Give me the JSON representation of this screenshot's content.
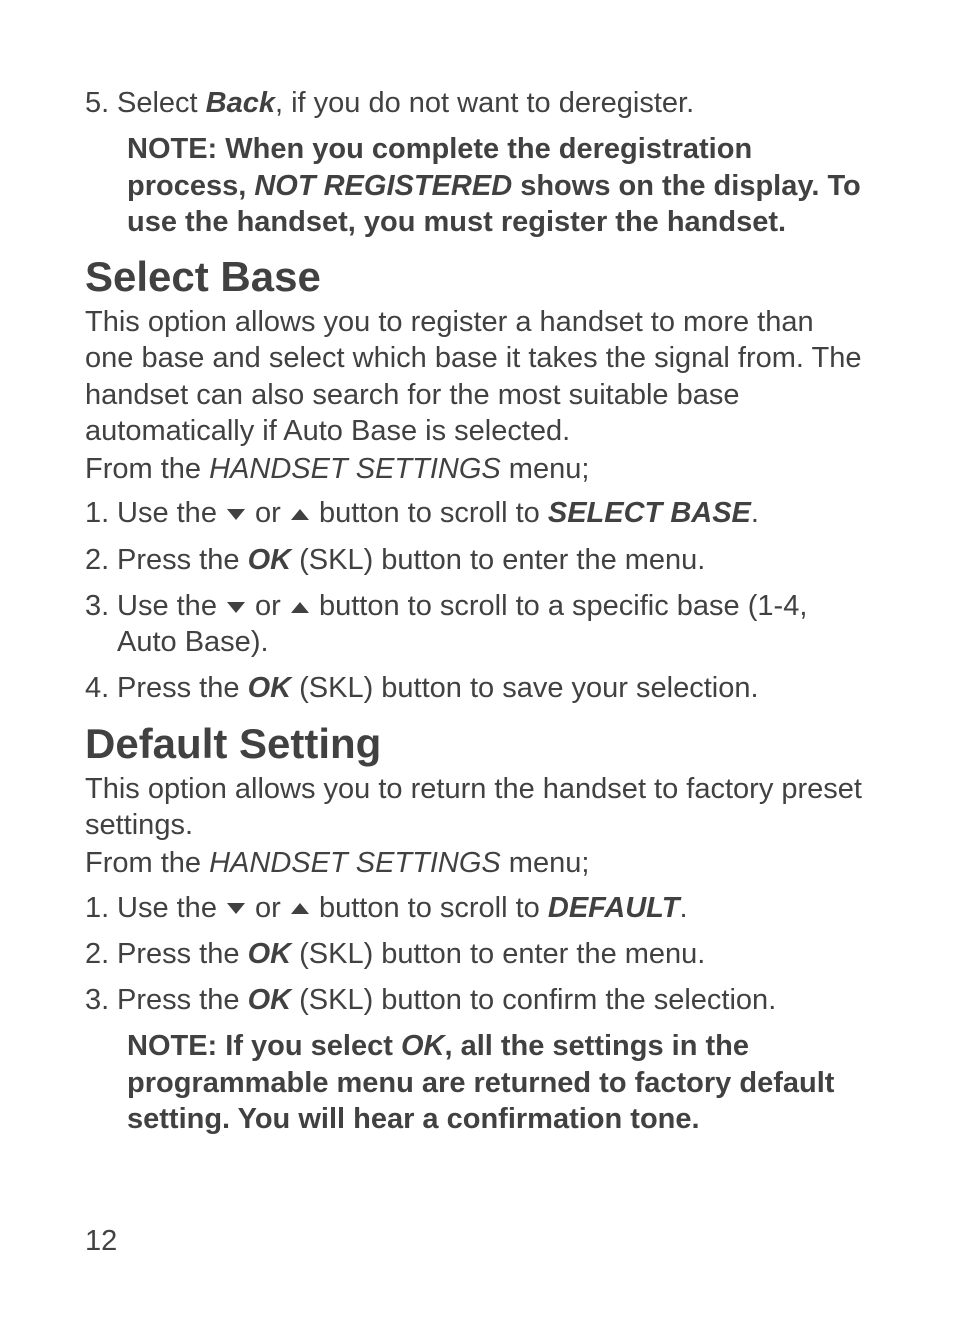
{
  "colors": {
    "text": "#414142",
    "bg": "#ffffff"
  },
  "typography": {
    "body_pt": 29,
    "heading_pt": 42,
    "note_pt": 29,
    "line_height": 1.25
  },
  "top": {
    "step5_num": "5.",
    "step5_a": "Select ",
    "step5_back": "Back",
    "step5_b": ", if you do not want to deregister.",
    "note_a": "NOTE: When you complete the deregistration process, ",
    "note_b": "NOT REGISTERED",
    "note_c": " shows on the display. To use the handset, you must register the handset."
  },
  "select_base": {
    "heading": "Select Base",
    "intro": "This option allows you to register a handset to more than one base and select which base it takes the signal from. The handset can also search for the most suitable base automatically if Auto Base is selected.",
    "from_a": "From the ",
    "from_b": "HANDSET SETTINGS",
    "from_c": " menu;",
    "s1_num": "1.",
    "s1_a": "Use the ",
    "s1_or": " or ",
    "s1_b": "  button to scroll to ",
    "s1_target": "SELECT BASE",
    "s1_c": ".",
    "s2_num": "2.",
    "s2_a": "Press the ",
    "s2_ok": "OK",
    "s2_b": " (SKL) button to enter the menu.",
    "s3_num": "3.",
    "s3_a": "Use the ",
    "s3_or": " or ",
    "s3_b": "  button to scroll to a specific base (1-4, Auto Base).",
    "s4_num": "4.",
    "s4_a": "Press the ",
    "s4_ok": "OK",
    "s4_b": " (SKL) button to save your selection."
  },
  "default_setting": {
    "heading": "Default Setting",
    "intro": "This option allows you to return the handset to factory preset settings.",
    "from_a": "From the ",
    "from_b": "HANDSET SETTINGS",
    "from_c": " menu;",
    "s1_num": "1.",
    "s1_a": "Use the ",
    "s1_or": " or ",
    "s1_b": "  button to scroll to ",
    "s1_target": "DEFAULT",
    "s1_c": ".",
    "s2_num": "2.",
    "s2_a": "Press the ",
    "s2_ok": "OK",
    "s2_b": " (SKL) button to enter the menu.",
    "s3_num": "3.",
    "s3_a": "Press the ",
    "s3_ok": "OK",
    "s3_b": " (SKL) button to confirm the selection.",
    "note_a": "NOTE: If you select ",
    "note_b": "OK",
    "note_c": ", all the settings in the programmable menu are returned to factory default setting. You will hear a confirmation tone."
  },
  "page_number": "12"
}
